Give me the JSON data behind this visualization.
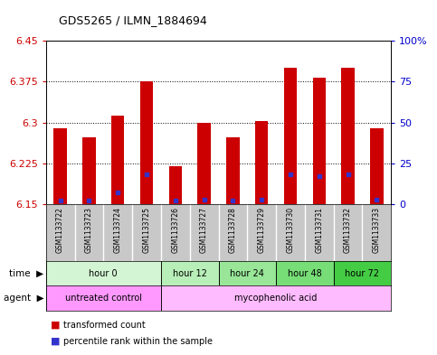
{
  "title": "GDS5265 / ILMN_1884694",
  "samples": [
    "GSM1133722",
    "GSM1133723",
    "GSM1133724",
    "GSM1133725",
    "GSM1133726",
    "GSM1133727",
    "GSM1133728",
    "GSM1133729",
    "GSM1133730",
    "GSM1133731",
    "GSM1133732",
    "GSM1133733"
  ],
  "bar_tops": [
    6.29,
    6.272,
    6.312,
    6.376,
    6.22,
    6.3,
    6.272,
    6.302,
    6.4,
    6.382,
    6.4,
    6.29
  ],
  "blue_pct": [
    2,
    2,
    7,
    18,
    2,
    3,
    2,
    3,
    18,
    17,
    18,
    3
  ],
  "bar_color": "#cc0000",
  "blue_color": "#3333cc",
  "ymin": 6.15,
  "ymax": 6.45,
  "yticks_left": [
    6.15,
    6.225,
    6.3,
    6.375,
    6.45
  ],
  "yticks_right": [
    0,
    25,
    50,
    75,
    100
  ],
  "bg_plot": "#ffffff",
  "bg_figure": "#ffffff",
  "time_groups": [
    {
      "label": "hour 0",
      "start": 0,
      "end": 3,
      "color": "#d4f5d4"
    },
    {
      "label": "hour 12",
      "start": 4,
      "end": 5,
      "color": "#b8eeb8"
    },
    {
      "label": "hour 24",
      "start": 6,
      "end": 7,
      "color": "#99e699"
    },
    {
      "label": "hour 48",
      "start": 8,
      "end": 9,
      "color": "#77dd77"
    },
    {
      "label": "hour 72",
      "start": 10,
      "end": 11,
      "color": "#44cc44"
    }
  ],
  "agent_groups": [
    {
      "label": "untreated control",
      "start": 0,
      "end": 3,
      "color": "#ff99ff"
    },
    {
      "label": "mycophenolic acid",
      "start": 4,
      "end": 11,
      "color": "#ffbbff"
    }
  ],
  "tick_color_left": "#cc0000",
  "tick_color_right": "#0000cc",
  "sample_bg": "#c8c8c8",
  "bar_width": 0.45,
  "legend_items": [
    "transformed count",
    "percentile rank within the sample"
  ]
}
